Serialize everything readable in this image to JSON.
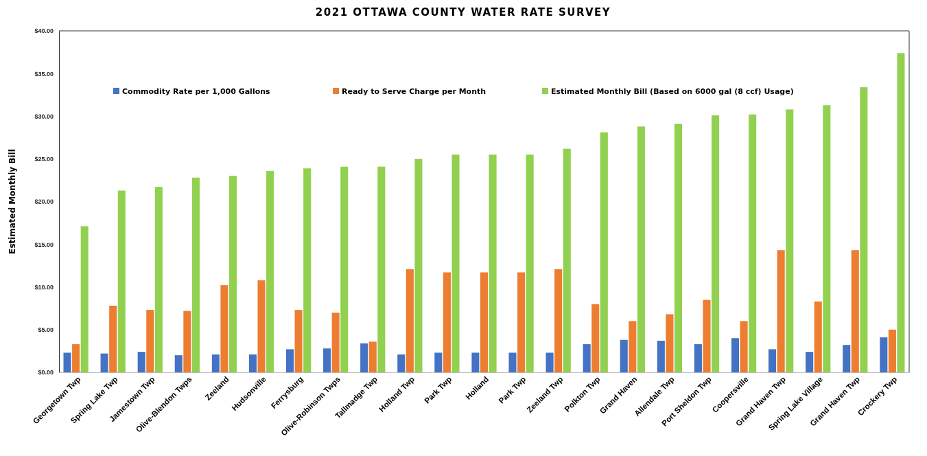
{
  "chart_data": {
    "type": "bar",
    "title": "2021 OTTAWA COUNTY WATER RATE SURVEY",
    "ylabel": "Estimated Monthly Bill",
    "categories": [
      "Georgetown Twp",
      "Spring Lake Twp",
      "Jamestown Twp",
      "Olive-Blendon Twps",
      "Zeeland",
      "Hudsonville",
      "Ferrysburg",
      "Olive-Robinson Twps",
      "Tallmadge Twp",
      "Holland Twp",
      "Park Twp",
      "Holland",
      "Park Twp",
      "Zeeland Twp",
      "Polkton Twp",
      "Grand Haven",
      "Allendale Twp",
      "Port Sheldon Twp",
      "Coopersville",
      "Grand Haven Twp",
      "Spring Lake Village",
      "Grand Haven Twp",
      "Crockery Twp"
    ],
    "series": [
      {
        "name": "Commodity Rate per 1,000 Gallons",
        "color": "#4472c4",
        "values": [
          2.3,
          2.2,
          2.4,
          2.0,
          2.1,
          2.1,
          2.7,
          2.8,
          3.4,
          2.1,
          2.3,
          2.3,
          2.3,
          2.3,
          3.3,
          3.8,
          3.7,
          3.3,
          4.0,
          2.7,
          2.4,
          3.2,
          4.1
        ]
      },
      {
        "name": "Ready to Serve Charge per Month",
        "color": "#ed7d31",
        "values": [
          3.3,
          7.8,
          7.3,
          7.2,
          10.2,
          10.8,
          7.3,
          7.0,
          3.6,
          12.1,
          11.7,
          11.7,
          11.7,
          12.1,
          8.0,
          6.0,
          6.8,
          8.5,
          6.0,
          14.3,
          8.3,
          14.3,
          5.0
        ]
      },
      {
        "name": "Estimated Monthly Bill (Based on 6000 gal (8 ccf) Usage)",
        "color": "#92d050",
        "values": [
          17.1,
          21.3,
          21.7,
          22.8,
          23.0,
          23.6,
          23.9,
          24.1,
          24.1,
          25.0,
          25.5,
          25.5,
          25.5,
          26.2,
          28.1,
          28.8,
          29.1,
          30.1,
          30.2,
          30.8,
          31.3,
          33.4,
          37.4
        ]
      }
    ],
    "ylim": [
      0,
      40
    ],
    "yticks": [
      {
        "value": 0,
        "label": "$0.00"
      },
      {
        "value": 5,
        "label": "$5.00"
      },
      {
        "value": 10,
        "label": "$10.00"
      },
      {
        "value": 15,
        "label": "$15.00"
      },
      {
        "value": 20,
        "label": "$20.00"
      },
      {
        "value": 25,
        "label": "$25.00"
      },
      {
        "value": 30,
        "label": "$30.00"
      },
      {
        "value": 35,
        "label": "$35.00"
      },
      {
        "value": 40,
        "label": "$40.00"
      }
    ],
    "grid": false,
    "legend": "top"
  }
}
